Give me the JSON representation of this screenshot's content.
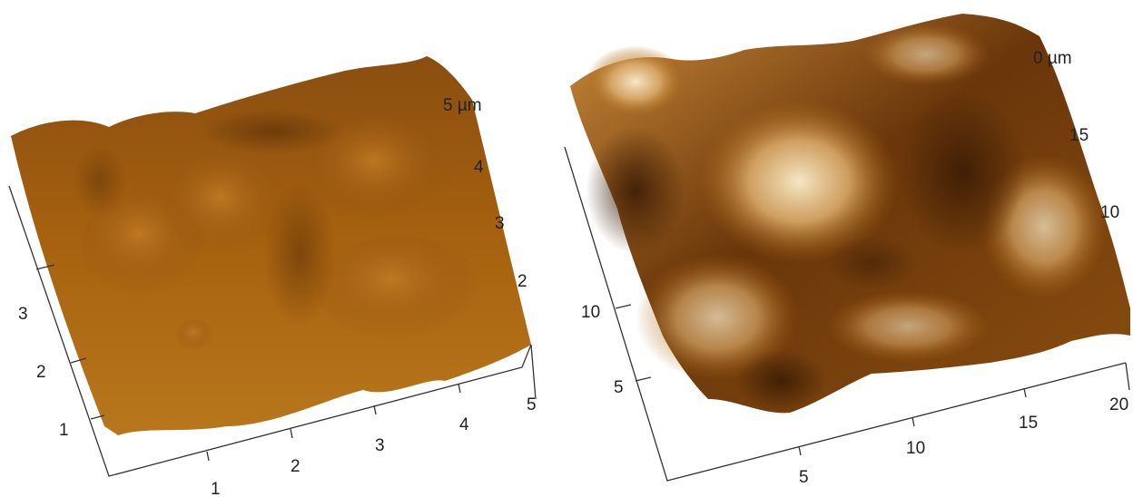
{
  "panels": [
    {
      "name": "afm-left",
      "unit_label": "5 µm",
      "right_ticks": [
        "4",
        "3",
        "2"
      ],
      "left_ticks": [
        "3",
        "2",
        "1"
      ],
      "bottom_ticks": [
        "1",
        "2",
        "3",
        "4",
        "5"
      ]
    },
    {
      "name": "afm-right",
      "unit_label": "0 µm",
      "right_ticks": [
        "15",
        "10"
      ],
      "left_ticks": [
        "10",
        "5"
      ],
      "bottom_ticks": [
        "5",
        "10",
        "15",
        "20"
      ]
    }
  ],
  "colors": {
    "dark": "#3b1c05",
    "mid": "#a8620f",
    "light": "#f4e4bf"
  }
}
